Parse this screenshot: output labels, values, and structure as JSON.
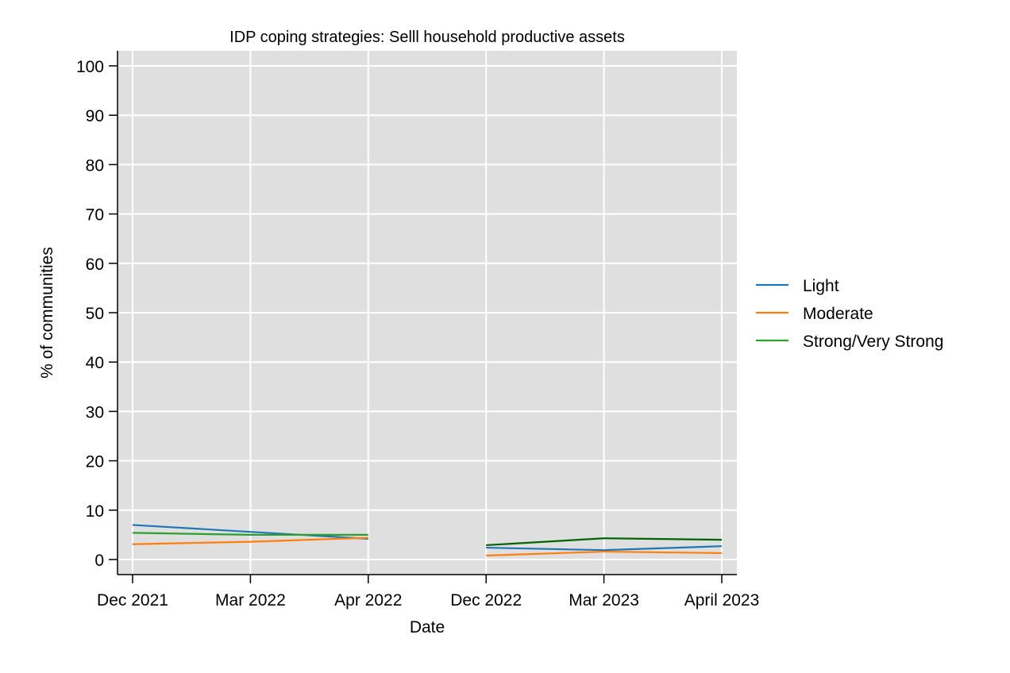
{
  "chart_data": {
    "type": "line",
    "title": "IDP coping strategies: Selll household productive assets",
    "xlabel": "Date",
    "ylabel": "% of communities",
    "categories": [
      "Dec 2021",
      "Mar 2022",
      "Apr 2022",
      "Dec 2022",
      "Mar 2023",
      "April 2023"
    ],
    "ylim": [
      -3,
      102
    ],
    "yticks": [
      0,
      10,
      20,
      30,
      40,
      50,
      60,
      70,
      80,
      90,
      100
    ],
    "grid": true,
    "legend_position": "right",
    "series": [
      {
        "name": "Light",
        "color": "#1f77b4",
        "segments": [
          {
            "x": [
              "Dec 2021",
              "Mar 2022",
              "Apr 2022"
            ],
            "values": [
              7.0,
              5.6,
              4.2
            ]
          },
          {
            "x": [
              "Dec 2022",
              "Mar 2023",
              "April 2023"
            ],
            "values": [
              2.4,
              1.9,
              2.7
            ]
          }
        ]
      },
      {
        "name": "Moderate",
        "color": "#ff7f0e",
        "segments": [
          {
            "x": [
              "Dec 2021",
              "Mar 2022",
              "Apr 2022"
            ],
            "values": [
              3.1,
              3.6,
              4.4
            ]
          },
          {
            "x": [
              "Dec 2022",
              "Mar 2023",
              "April 2023"
            ],
            "values": [
              0.8,
              1.6,
              1.3
            ]
          }
        ]
      },
      {
        "name": "Strong/Very Strong",
        "color": "#2ca02c",
        "segments": [
          {
            "x": [
              "Dec 2021",
              "Mar 2022",
              "Apr 2022"
            ],
            "values": [
              5.4,
              5.0,
              5.0
            ],
            "color": "#2ca02c"
          },
          {
            "x": [
              "Dec 2022",
              "Mar 2023",
              "April 2023"
            ],
            "values": [
              2.9,
              4.3,
              4.0
            ],
            "color": "#006400"
          }
        ]
      }
    ]
  }
}
